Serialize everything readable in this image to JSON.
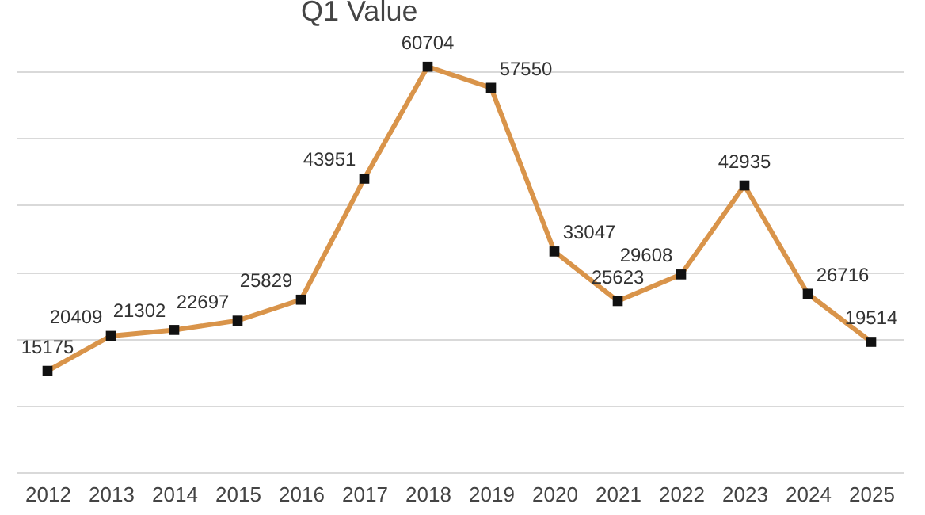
{
  "chart_data": {
    "type": "line",
    "title": "Q1 Value",
    "categories": [
      "2012",
      "2013",
      "2014",
      "2015",
      "2016",
      "2017",
      "2018",
      "2019",
      "2020",
      "2021",
      "2022",
      "2023",
      "2024",
      "2025"
    ],
    "series": [
      {
        "color": "#d9944a",
        "values": [
          15175,
          20409,
          21302,
          22697,
          25829,
          43951,
          60704,
          57550,
          33047,
          25623,
          29608,
          42935,
          26716,
          19514
        ]
      }
    ],
    "tick_labels": "x",
    "grid": "y",
    "marker": "square",
    "line_style": "solid",
    "data_labels": true
  }
}
